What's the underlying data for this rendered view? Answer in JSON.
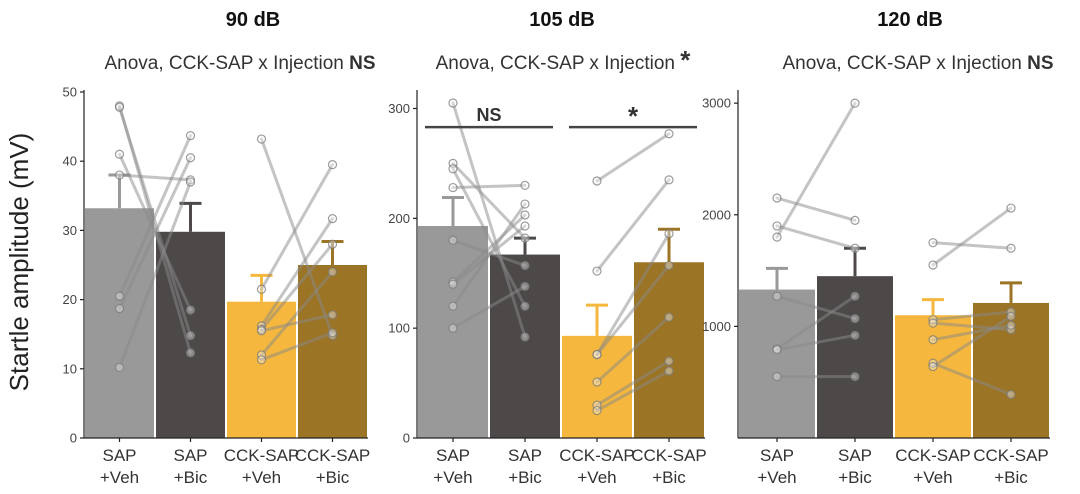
{
  "figure": {
    "ylabel": "Startle amplitude (mV)"
  },
  "colors": {
    "sap_veh": "#999999",
    "sap_bic": "#4d4949",
    "cck_veh": "#f5b73d",
    "cck_bic": "#9b7426",
    "pair_line": "#8a8a8a",
    "axis": "#222222"
  },
  "chart_data": [
    {
      "type": "bar",
      "title": "90 dB",
      "stat_prefix": "Anova, CCK-SAP x Injection",
      "stat_result": "NS",
      "categories": [
        [
          "SAP",
          "+Veh"
        ],
        [
          "SAP",
          "+Bic"
        ],
        [
          "CCK-SAP",
          "+Veh"
        ],
        [
          "CCK-SAP",
          "+Bic"
        ]
      ],
      "values": [
        33.2,
        29.8,
        19.7,
        25.0
      ],
      "errors": [
        4.8,
        4.1,
        3.8,
        3.4
      ],
      "ylim": [
        0,
        50
      ],
      "yticks": [
        0,
        10,
        20,
        30,
        40,
        50
      ],
      "pairs": [
        {
          "group": "SAP",
          "points": [
            [
              48.0,
              12.3
            ],
            [
              47.8,
              14.8
            ],
            [
              41.0,
              18.5
            ],
            [
              38.0,
              37.3
            ],
            [
              20.5,
              43.7
            ],
            [
              18.7,
              40.5
            ],
            [
              10.2,
              37.0
            ]
          ]
        },
        {
          "group": "CCK-SAP",
          "points": [
            [
              43.2,
              14.8
            ],
            [
              21.5,
              39.5
            ],
            [
              16.2,
              31.7
            ],
            [
              15.7,
              28.0
            ],
            [
              15.5,
              17.8
            ],
            [
              12.0,
              24.0
            ],
            [
              11.3,
              15.2
            ]
          ]
        }
      ],
      "comparisons": []
    },
    {
      "type": "bar",
      "title": "105 dB",
      "stat_prefix": "Anova, CCK-SAP x Injection",
      "stat_result": "*",
      "categories": [
        [
          "SAP",
          "+Veh"
        ],
        [
          "SAP",
          "+Bic"
        ],
        [
          "CCK-SAP",
          "+Veh"
        ],
        [
          "CCK-SAP",
          "+Bic"
        ]
      ],
      "values": [
        193,
        167,
        93,
        160
      ],
      "errors": [
        26,
        15,
        28,
        30
      ],
      "ylim": [
        0,
        315
      ],
      "yticks": [
        0,
        100,
        200,
        300
      ],
      "pairs": [
        {
          "group": "SAP",
          "points": [
            [
              305,
              92
            ],
            [
              250,
              182
            ],
            [
              245,
              120
            ],
            [
              228,
              230
            ],
            [
              180,
              157
            ],
            [
              142,
              203
            ],
            [
              140,
              193
            ],
            [
              120,
              213
            ],
            [
              100,
              138
            ]
          ]
        },
        {
          "group": "CCK-SAP",
          "points": [
            [
              234,
              277
            ],
            [
              152,
              235
            ],
            [
              76,
              186
            ],
            [
              76,
              157
            ],
            [
              51,
              110
            ],
            [
              30,
              70
            ],
            [
              25,
              61
            ]
          ]
        }
      ],
      "comparisons": [
        {
          "label": "NS",
          "bars": [
            0,
            1
          ],
          "y": 283
        },
        {
          "label": "*",
          "bars": [
            2,
            3
          ],
          "y": 283
        }
      ]
    },
    {
      "type": "bar",
      "title": "120 dB",
      "stat_prefix": "Anova, CCK-SAP x Injection",
      "stat_result": "NS",
      "categories": [
        [
          "SAP",
          "+Veh"
        ],
        [
          "SAP",
          "+Bic"
        ],
        [
          "CCK-SAP",
          "+Veh"
        ],
        [
          "CCK-SAP",
          "+Bic"
        ]
      ],
      "values": [
        1330,
        1450,
        1100,
        1210
      ],
      "errors": [
        190,
        250,
        140,
        180
      ],
      "ylim": [
        0,
        3100
      ],
      "yticks": [
        1000,
        2000,
        3000
      ],
      "pairs": [
        {
          "group": "SAP",
          "points": [
            [
              2150,
              1950
            ],
            [
              1900,
              1700
            ],
            [
              1800,
              3000
            ],
            [
              1270,
              1070
            ],
            [
              800,
              1270
            ],
            [
              790,
              920
            ],
            [
              550,
              550
            ]
          ]
        },
        {
          "group": "CCK-SAP",
          "points": [
            [
              1750,
              1700
            ],
            [
              1550,
              2060
            ],
            [
              1060,
              1130
            ],
            [
              1030,
              970
            ],
            [
              880,
              1010
            ],
            [
              670,
              390
            ],
            [
              640,
              1090
            ]
          ]
        }
      ],
      "comparisons": []
    }
  ]
}
